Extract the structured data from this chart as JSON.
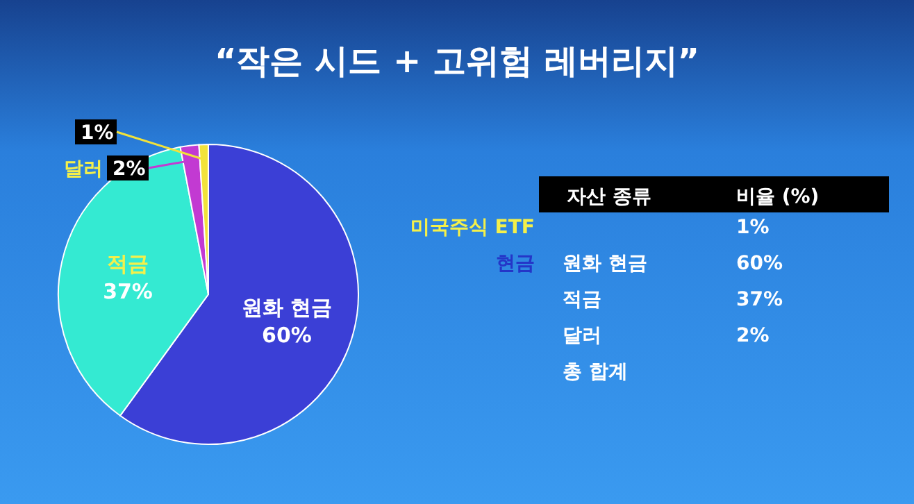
{
  "chart_data": {
    "type": "pie",
    "title": "“작은 시드 + 고위험 레버리지”",
    "categories": [
      "원화 현금",
      "적금",
      "달러",
      null
    ],
    "values": [
      60,
      37,
      2,
      1
    ],
    "value_labels": [
      "60%",
      "37%",
      "2%",
      "1%"
    ],
    "colors": [
      "#3b3fd6",
      "#34ead2",
      "#c23ad2",
      "#f2e23a"
    ],
    "annotations": [
      "자산 종류",
      "비율 (%)",
      "미국주식 ETF",
      "1%",
      "현금",
      "원화 현금",
      "60%",
      "적금",
      "37%",
      "달러",
      "2%",
      "총 합계"
    ]
  }
}
